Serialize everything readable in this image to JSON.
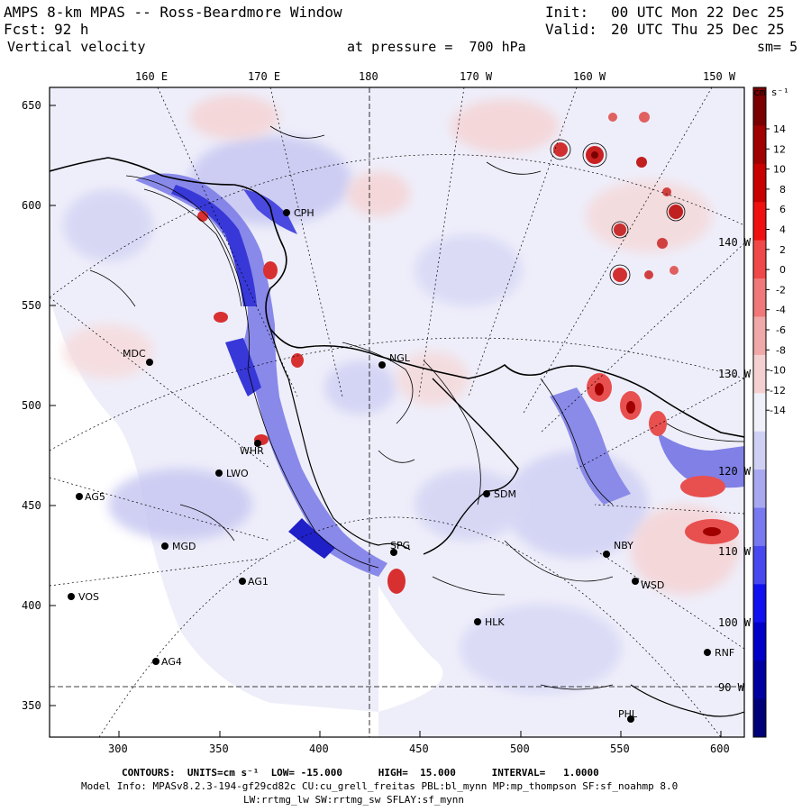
{
  "header": {
    "title": "AMPS 8-km MPAS -- Ross-Beardmore Window",
    "forecast_label": "Fcst:",
    "forecast_value": "92 h",
    "variable": "Vertical velocity",
    "init_label": "Init:",
    "init_value": "00 UTC Mon 22 Dec 25",
    "valid_label": "Valid:",
    "valid_value": "20 UTC Thu 25 Dec 25",
    "pressure_text": "at pressure =  700 hPa",
    "smoothing_text": "sm= 5"
  },
  "map": {
    "lon_labels_top": [
      "160 E",
      "170 E",
      "180",
      "170 W",
      "160 W",
      "150 W"
    ],
    "lon_labels_side": [
      "140 W",
      "130 W",
      "120 W",
      "110 W",
      "100 W",
      "90 W"
    ],
    "x_axis_ticks": [
      "300",
      "350",
      "400",
      "450",
      "500",
      "550",
      "600"
    ],
    "y_axis_ticks": [
      "650",
      "600",
      "550",
      "500",
      "450",
      "400",
      "350"
    ],
    "stations": [
      {
        "id": "MDC",
        "label": "MDC"
      },
      {
        "id": "NGL",
        "label": "NGL"
      },
      {
        "id": "CPH",
        "label": "CPH"
      },
      {
        "id": "WHR",
        "label": "WHR"
      },
      {
        "id": "LWO",
        "label": "LWO"
      },
      {
        "id": "AG5",
        "label": "AG5"
      },
      {
        "id": "MGD",
        "label": "MGD"
      },
      {
        "id": "AG1",
        "label": "AG1"
      },
      {
        "id": "VOS",
        "label": "VOS"
      },
      {
        "id": "AG4",
        "label": "AG4"
      },
      {
        "id": "SDM",
        "label": "SDM"
      },
      {
        "id": "NBY",
        "label": "NBY"
      },
      {
        "id": "WSD",
        "label": "WSD"
      },
      {
        "id": "HLK",
        "label": "HLK"
      },
      {
        "id": "RNF",
        "label": "RNF"
      },
      {
        "id": "PHL",
        "label": "PHL"
      },
      {
        "id": "SPG",
        "label": "SPG"
      }
    ]
  },
  "colorbar": {
    "units_label": "cm s⁻¹",
    "tick_labels": [
      "14",
      "12",
      "10",
      "8",
      "6",
      "4",
      "2",
      "0",
      "-2",
      "-4",
      "-6",
      "-8",
      "-10",
      "-12",
      "-14"
    ],
    "colors": [
      "#7a0000",
      "#a00000",
      "#c80000",
      "#f01010",
      "#f04848",
      "#f07878",
      "#f0a8a8",
      "#f5d0d0",
      "#f0f0f8",
      "#d0d0f5",
      "#a8a8f0",
      "#7878f0",
      "#4848f0",
      "#1010f0",
      "#0000c8",
      "#0000a0",
      "#000078"
    ]
  },
  "footer": {
    "contours_line": "CONTOURS:  UNITS=cm s⁻¹  LOW= -15.000      HIGH=  15.000      INTERVAL=   1.0000",
    "model_info": "Model Info: MPASv8.2.3-194-gf29cd82c CU:cu_grell_freitas PBL:bl_mynn MP:mp_thompson SF:sf_noahmp 8.0",
    "physics_line": "LW:rrtmg_lw SW:rrtmg_sw SFLAY:sf_mynn"
  }
}
